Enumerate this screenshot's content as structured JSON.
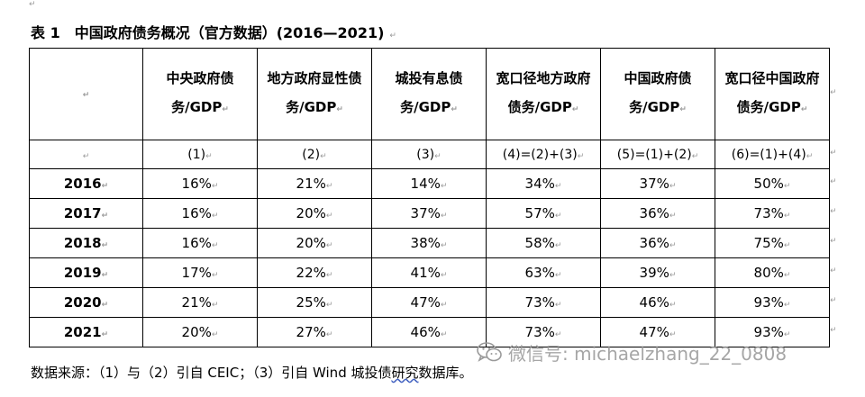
{
  "paragraph_mark": "↵",
  "title": "表 1　中国政府债务概况（官方数据）(2016—2021)",
  "table": {
    "headers": [
      "",
      "中央政府债务/GDP",
      "地方政府显性债务/GDP",
      "城投有息债务/GDP",
      "宽口径地方政府债务/GDP",
      "中国政府债务/GDP",
      "宽口径中国政府债务/GDP"
    ],
    "formula_row": [
      "",
      "(1)",
      "(2)",
      "(3)",
      "(4)=(2)+(3)",
      "(5)=(1)+(2)",
      "(6)=(1)+(4)"
    ],
    "rows": [
      {
        "year": "2016",
        "values": [
          "16%",
          "21%",
          "14%",
          "34%",
          "37%",
          "50%"
        ]
      },
      {
        "year": "2017",
        "values": [
          "16%",
          "20%",
          "37%",
          "57%",
          "36%",
          "73%"
        ]
      },
      {
        "year": "2018",
        "values": [
          "16%",
          "20%",
          "38%",
          "58%",
          "36%",
          "75%"
        ]
      },
      {
        "year": "2019",
        "values": [
          "17%",
          "22%",
          "41%",
          "63%",
          "39%",
          "80%"
        ]
      },
      {
        "year": "2020",
        "values": [
          "21%",
          "25%",
          "47%",
          "73%",
          "46%",
          "93%"
        ]
      },
      {
        "year": "2021",
        "values": [
          "20%",
          "27%",
          "46%",
          "73%",
          "47%",
          "93%"
        ]
      }
    ]
  },
  "source": {
    "prefix": "数据来源：（1）与（2）引自 CEIC；（3）引自 Wind 城投债",
    "underlined": "研究",
    "suffix": "数据库。"
  },
  "watermark": {
    "icon": "wechat-icon",
    "text": "微信号: michaelzhang_22_0808"
  }
}
